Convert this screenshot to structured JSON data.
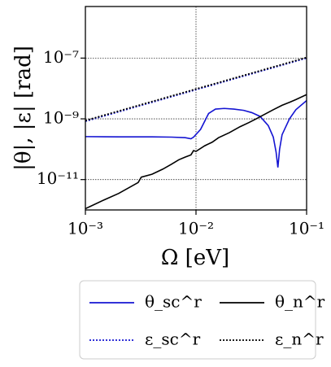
{
  "chart_data": {
    "type": "line",
    "xlabel": "Ω [eV]",
    "ylabel": "|θ|, |ε| [rad]",
    "xscale": "log",
    "yscale": "log",
    "grid": true,
    "xlim": [
      0.001,
      0.1
    ],
    "ylim": [
      1e-12,
      5e-06
    ],
    "xticks": [
      {
        "value": 0.001,
        "label": "10⁻³"
      },
      {
        "value": 0.01,
        "label": "10⁻²"
      },
      {
        "value": 0.1,
        "label": "10⁻¹"
      }
    ],
    "yticks": [
      {
        "value": 1e-11,
        "label": "10⁻¹¹"
      },
      {
        "value": 1e-09,
        "label": "10⁻⁹"
      },
      {
        "value": 1e-07,
        "label": "10⁻⁷"
      }
    ],
    "legend": "below",
    "series": [
      {
        "name": "θ_sc^r",
        "color": "#1414d2",
        "style": "solid",
        "x": [
          0.001,
          0.002,
          0.004,
          0.006,
          0.008,
          0.009,
          0.0095,
          0.011,
          0.013,
          0.015,
          0.018,
          0.022,
          0.027,
          0.032,
          0.038,
          0.045,
          0.05,
          0.053,
          0.055,
          0.057,
          0.06,
          0.07,
          0.08,
          0.1
        ],
        "values": [
          2.6e-10,
          2.55e-10,
          2.55e-10,
          2.5e-10,
          2.4e-10,
          2.2e-10,
          2.5e-10,
          4.5e-10,
          1.5e-09,
          2.1e-09,
          2.2e-09,
          2.1e-09,
          1.9e-09,
          1.6e-09,
          1.2e-09,
          6e-10,
          2.5e-10,
          8e-11,
          2.5e-11,
          1e-10,
          3e-10,
          1e-09,
          2e-09,
          4e-09
        ]
      },
      {
        "name": "ε_sc^r",
        "color": "#1414d2",
        "style": "dotted",
        "x": [
          0.001,
          0.1
        ],
        "values": [
          8.3e-10,
          1e-07
        ]
      },
      {
        "name": "θ_n^r",
        "color": "#000000",
        "style": "solid",
        "x": [
          0.001,
          0.0015,
          0.002,
          0.003,
          0.0032,
          0.004,
          0.005,
          0.006,
          0.007,
          0.008,
          0.009,
          0.0095,
          0.01,
          0.012,
          0.014,
          0.016,
          0.02,
          0.025,
          0.03,
          0.035,
          0.04,
          0.05,
          0.06,
          0.07,
          0.08,
          0.1
        ],
        "values": [
          1.1e-12,
          2.2e-12,
          3.5e-12,
          8e-12,
          1.2e-11,
          1.5e-11,
          2.2e-11,
          3.2e-11,
          4.5e-11,
          5.5e-11,
          6.5e-11,
          9e-11,
          8.5e-11,
          1.3e-10,
          1.7e-10,
          2.4e-10,
          3.5e-10,
          5.5e-10,
          7.5e-10,
          1e-09,
          1.3e-09,
          2e-09,
          2.8e-09,
          3.5e-09,
          4.3e-09,
          6.3e-09
        ]
      },
      {
        "name": "ε_n^r",
        "color": "#000000",
        "style": "dotted",
        "x": [
          0.001,
          0.1
        ],
        "values": [
          8.8e-10,
          1.05e-07
        ]
      }
    ]
  }
}
